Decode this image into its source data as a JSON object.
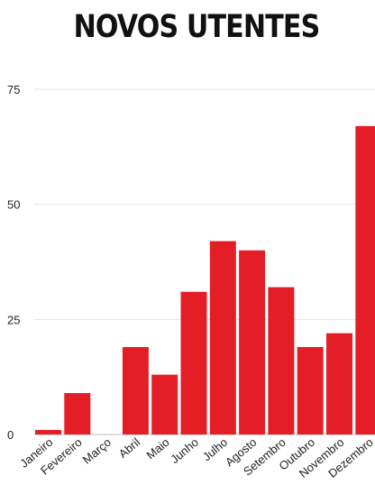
{
  "chart_data": {
    "type": "bar",
    "title": "NOVOS UTENTES",
    "categories": [
      "Janeiro",
      "Fevereiro",
      "Março",
      "Abril",
      "Maio",
      "Junho",
      "Julho",
      "Agosto",
      "Setembro",
      "Outubro",
      "Novembro",
      "Dezembro"
    ],
    "values": [
      1,
      9,
      0,
      19,
      13,
      31,
      42,
      40,
      32,
      19,
      22,
      67
    ],
    "yticks": [
      0,
      25,
      50,
      75
    ],
    "ylim": [
      0,
      75
    ],
    "xlabel": "",
    "ylabel": "",
    "grid": true,
    "bar_color": "#e41e26"
  }
}
